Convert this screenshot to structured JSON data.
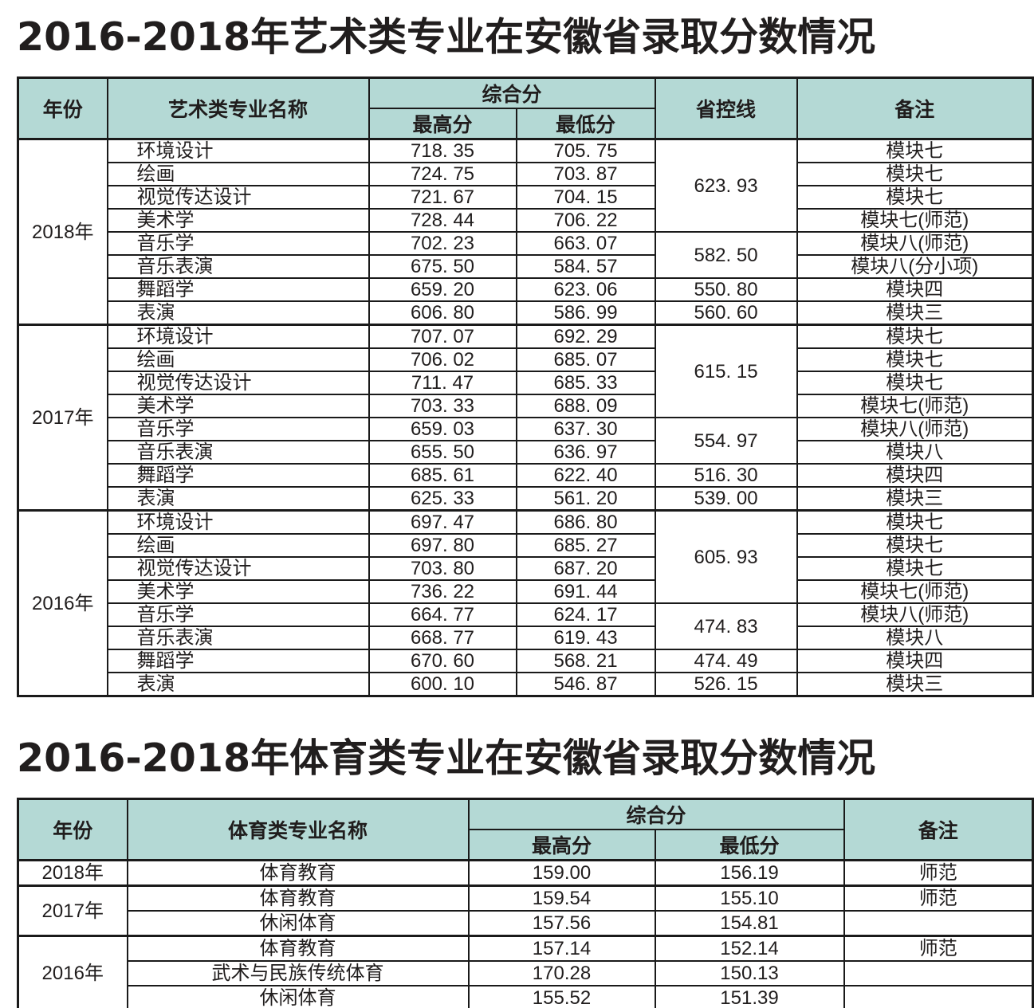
{
  "colors": {
    "header_bg": "#b4d9d5",
    "row_alt_bg": "#cfdcb1",
    "border": "#1a1a1a",
    "text": "#201d1d"
  },
  "art_table": {
    "title": "2016-2018年艺术类专业在安徽省录取分数情况",
    "headers": {
      "year": "年份",
      "major": "艺术类专业名称",
      "composite": "综合分",
      "max": "最高分",
      "min": "最低分",
      "control_line": "省控线",
      "remark": "备注"
    },
    "year_groups": [
      {
        "year": "2018年",
        "rows": [
          {
            "major": "环境设计",
            "max": "718. 35",
            "min": "705. 75",
            "remark": "模块七"
          },
          {
            "major": "绘画",
            "max": "724. 75",
            "min": "703. 87",
            "remark": "模块七"
          },
          {
            "major": "视觉传达设计",
            "max": "721. 67",
            "min": "704. 15",
            "remark": "模块七"
          },
          {
            "major": "美术学",
            "max": "728. 44",
            "min": "706. 22",
            "remark": "模块七(师范)"
          },
          {
            "major": "音乐学",
            "max": "702. 23",
            "min": "663. 07",
            "remark": "模块八(师范)"
          },
          {
            "major": "音乐表演",
            "max": "675. 50",
            "min": "584. 57",
            "remark": "模块八(分小项)"
          },
          {
            "major": "舞蹈学",
            "max": "659. 20",
            "min": "623. 06",
            "remark": "模块四"
          },
          {
            "major": "表演",
            "max": "606. 80",
            "min": "586. 99",
            "remark": "模块三"
          }
        ],
        "control_lines": [
          {
            "value": "623. 93",
            "span": 4
          },
          {
            "value": "582. 50",
            "span": 2
          },
          {
            "value": "550. 80",
            "span": 1
          },
          {
            "value": "560. 60",
            "span": 1
          }
        ]
      },
      {
        "year": "2017年",
        "rows": [
          {
            "major": "环境设计",
            "max": "707. 07",
            "min": "692. 29",
            "remark": "模块七"
          },
          {
            "major": "绘画",
            "max": "706. 02",
            "min": "685. 07",
            "remark": "模块七"
          },
          {
            "major": "视觉传达设计",
            "max": "711. 47",
            "min": "685. 33",
            "remark": "模块七"
          },
          {
            "major": "美术学",
            "max": "703. 33",
            "min": "688. 09",
            "remark": "模块七(师范)"
          },
          {
            "major": "音乐学",
            "max": "659. 03",
            "min": "637. 30",
            "remark": "模块八(师范)"
          },
          {
            "major": "音乐表演",
            "max": "655. 50",
            "min": "636. 97",
            "remark": "模块八"
          },
          {
            "major": "舞蹈学",
            "max": "685. 61",
            "min": "622. 40",
            "remark": "模块四"
          },
          {
            "major": "表演",
            "max": "625. 33",
            "min": "561. 20",
            "remark": "模块三"
          }
        ],
        "control_lines": [
          {
            "value": "615. 15",
            "span": 4
          },
          {
            "value": "554. 97",
            "span": 2
          },
          {
            "value": "516. 30",
            "span": 1
          },
          {
            "value": "539. 00",
            "span": 1
          }
        ]
      },
      {
        "year": "2016年",
        "rows": [
          {
            "major": "环境设计",
            "max": "697. 47",
            "min": "686. 80",
            "remark": "模块七"
          },
          {
            "major": "绘画",
            "max": "697. 80",
            "min": "685. 27",
            "remark": "模块七"
          },
          {
            "major": "视觉传达设计",
            "max": "703. 80",
            "min": "687. 20",
            "remark": "模块七"
          },
          {
            "major": "美术学",
            "max": "736. 22",
            "min": "691. 44",
            "remark": "模块七(师范)"
          },
          {
            "major": "音乐学",
            "max": "664. 77",
            "min": "624. 17",
            "remark": "模块八(师范)"
          },
          {
            "major": "音乐表演",
            "max": "668. 77",
            "min": "619. 43",
            "remark": "模块八"
          },
          {
            "major": "舞蹈学",
            "max": "670. 60",
            "min": "568. 21",
            "remark": "模块四"
          },
          {
            "major": "表演",
            "max": "600. 10",
            "min": "546. 87",
            "remark": "模块三"
          }
        ],
        "control_lines": [
          {
            "value": "605. 93",
            "span": 4
          },
          {
            "value": "474. 83",
            "span": 2
          },
          {
            "value": "474. 49",
            "span": 1
          },
          {
            "value": "526. 15",
            "span": 1
          }
        ]
      }
    ]
  },
  "sport_table": {
    "title": "2016-2018年体育类专业在安徽省录取分数情况",
    "headers": {
      "year": "年份",
      "major": "体育类专业名称",
      "composite": "综合分",
      "max": "最高分",
      "min": "最低分",
      "remark": "备注"
    },
    "year_groups": [
      {
        "year": "2018年",
        "rows": [
          {
            "major": "体育教育",
            "max": "159.00",
            "min": "156.19",
            "remark": "师范"
          }
        ]
      },
      {
        "year": "2017年",
        "rows": [
          {
            "major": "体育教育",
            "max": "159.54",
            "min": "155.10",
            "remark": "师范"
          },
          {
            "major": "休闲体育",
            "max": "157.56",
            "min": "154.81",
            "remark": ""
          }
        ]
      },
      {
        "year": "2016年",
        "rows": [
          {
            "major": "体育教育",
            "max": "157.14",
            "min": "152.14",
            "remark": "师范"
          },
          {
            "major": "武术与民族传统体育",
            "max": "170.28",
            "min": "150.13",
            "remark": ""
          },
          {
            "major": "休闲体育",
            "max": "155.52",
            "min": "151.39",
            "remark": ""
          }
        ]
      }
    ]
  }
}
